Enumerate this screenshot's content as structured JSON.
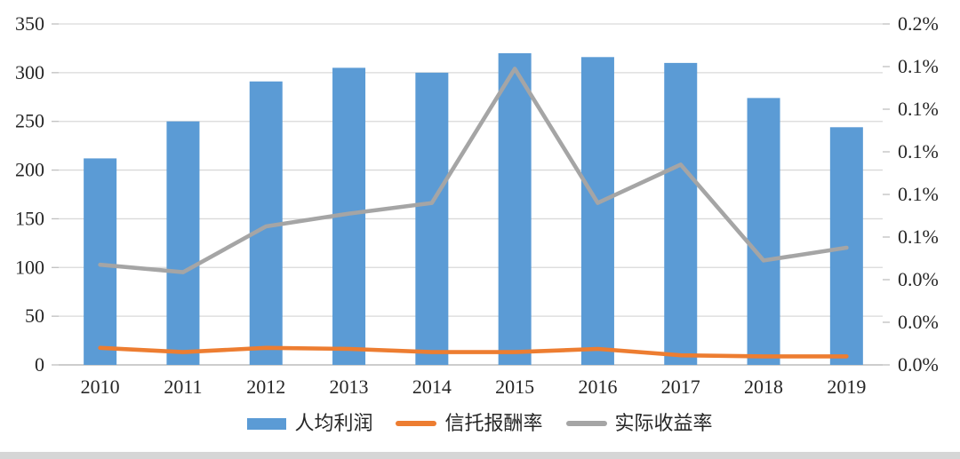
{
  "chart_data": {
    "type": "bar",
    "subtype": "combo-bar-line-dual-axis",
    "title": "",
    "categories": [
      "2010",
      "2011",
      "2012",
      "2013",
      "2014",
      "2015",
      "2016",
      "2017",
      "2018",
      "2019"
    ],
    "series": [
      {
        "name": "人均利润",
        "type": "bar",
        "axis": "left",
        "color": "#5B9BD5",
        "values": [
          212,
          250,
          291,
          305,
          300,
          320,
          316,
          310,
          274,
          244
        ]
      },
      {
        "name": "信托报酬率",
        "type": "line",
        "axis": "right",
        "color": "#ED7D31",
        "values_percent": [
          0.008,
          0.006,
          0.008,
          0.0075,
          0.006,
          0.006,
          0.0075,
          0.0045,
          0.004,
          0.004
        ]
      },
      {
        "name": "实际收益率",
        "type": "line",
        "axis": "right",
        "color": "#A5A5A5",
        "values_percent": [
          0.047,
          0.0435,
          0.065,
          0.071,
          0.076,
          0.139,
          0.076,
          0.094,
          0.049,
          0.055
        ]
      }
    ],
    "left_axis": {
      "min": 0,
      "max": 350,
      "step": 50,
      "tick_labels": [
        "350",
        "300",
        "250",
        "200",
        "150",
        "100",
        "50",
        "0"
      ]
    },
    "right_axis": {
      "min": 0,
      "max": 0.16,
      "step": 0.02,
      "tick_labels": [
        "0.2%",
        "0.1%",
        "0.1%",
        "0.1%",
        "0.1%",
        "0.1%",
        "0.0%",
        "0.0%",
        "0.0%"
      ]
    },
    "grid": true,
    "legend_position": "bottom"
  },
  "colors": {
    "bar_blue": "#5B9BD5",
    "line_orange": "#ED7D31",
    "line_gray": "#A5A5A5",
    "gridline": "#D9D9D9",
    "axis_line": "#BFBFBF",
    "text": "#262626",
    "bottom_strip": "#D6D6D6"
  }
}
